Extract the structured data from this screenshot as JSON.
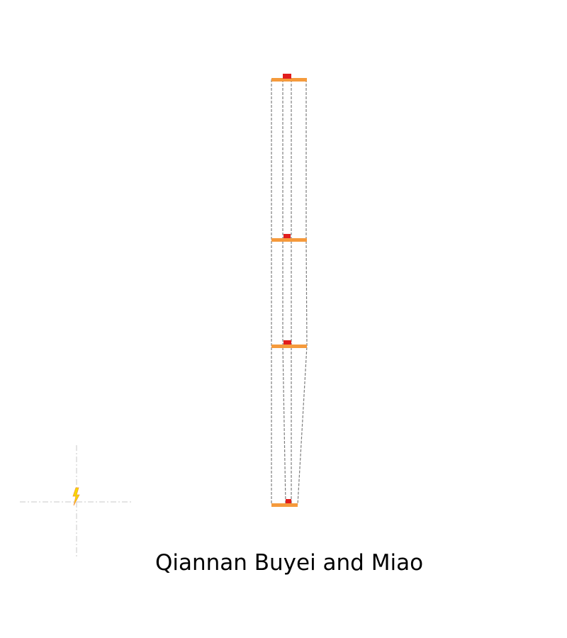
{
  "map": {
    "caption": "Qiannan Buyei and Miao",
    "colors": {
      "background": "#ffffff",
      "bar": "#f59a3c",
      "marker": "#e11d1d",
      "outline": "#7f7f7f",
      "compass_axis": "#c8c8c8",
      "compass_symbol": "#f5d800",
      "compass_symbol_accent": "#f59a3c"
    },
    "icons": {
      "compass": "lightning-compass-icon",
      "marker": "location-marker-icon"
    }
  }
}
